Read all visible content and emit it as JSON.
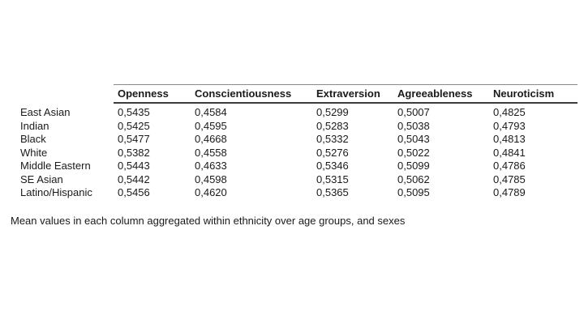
{
  "table": {
    "row_label_header": "",
    "column_headers": [
      "Openness",
      "Conscientiousness",
      "Extraversion",
      "Agreeableness",
      "Neuroticism"
    ],
    "rows": [
      {
        "label": "East Asian",
        "values": [
          "0,5435",
          "0,4584",
          "0,5299",
          "0,5007",
          "0,4825"
        ]
      },
      {
        "label": "Indian",
        "values": [
          "0,5425",
          "0,4595",
          "0,5283",
          "0,5038",
          "0,4793"
        ]
      },
      {
        "label": "Black",
        "values": [
          "0,5477",
          "0,4668",
          "0,5332",
          "0,5043",
          "0,4813"
        ]
      },
      {
        "label": "White",
        "values": [
          "0,5382",
          "0,4558",
          "0,5276",
          "0,5022",
          "0,4841"
        ]
      },
      {
        "label": "Middle Eastern",
        "values": [
          "0,5443",
          "0,4633",
          "0,5346",
          "0,5099",
          "0,4786"
        ]
      },
      {
        "label": "SE Asian",
        "values": [
          "0,5442",
          "0,4598",
          "0,5315",
          "0,5062",
          "0,4785"
        ]
      },
      {
        "label": "Latino/Hispanic",
        "values": [
          "0,5456",
          "0,4620",
          "0,5365",
          "0,5095",
          "0,4789"
        ]
      }
    ],
    "decimal_separator": ","
  },
  "caption": "Mean values in each column aggregated within ethnicity over age groups, and sexes",
  "chart_data": {
    "type": "table",
    "categories": [
      "East Asian",
      "Indian",
      "Black",
      "White",
      "Middle Eastern",
      "SE Asian",
      "Latino/Hispanic"
    ],
    "series": [
      {
        "name": "Openness",
        "values": [
          0.5435,
          0.5425,
          0.5477,
          0.5382,
          0.5443,
          0.5442,
          0.5456
        ]
      },
      {
        "name": "Conscientiousness",
        "values": [
          0.4584,
          0.4595,
          0.4668,
          0.4558,
          0.4633,
          0.4598,
          0.462
        ]
      },
      {
        "name": "Extraversion",
        "values": [
          0.5299,
          0.5283,
          0.5332,
          0.5276,
          0.5346,
          0.5315,
          0.5365
        ]
      },
      {
        "name": "Agreeableness",
        "values": [
          0.5007,
          0.5038,
          0.5043,
          0.5022,
          0.5099,
          0.5062,
          0.5095
        ]
      },
      {
        "name": "Neuroticism",
        "values": [
          0.4825,
          0.4793,
          0.4813,
          0.4841,
          0.4786,
          0.4785,
          0.4789
        ]
      }
    ],
    "title": "",
    "caption": "Mean values in each column aggregated within ethnicity over age groups, and sexes"
  },
  "colors": {
    "background": "#ffffff",
    "text": "#1a1a1a",
    "rule_top": "#8a8a8a",
    "rule_bottom": "#3c3c3c"
  }
}
